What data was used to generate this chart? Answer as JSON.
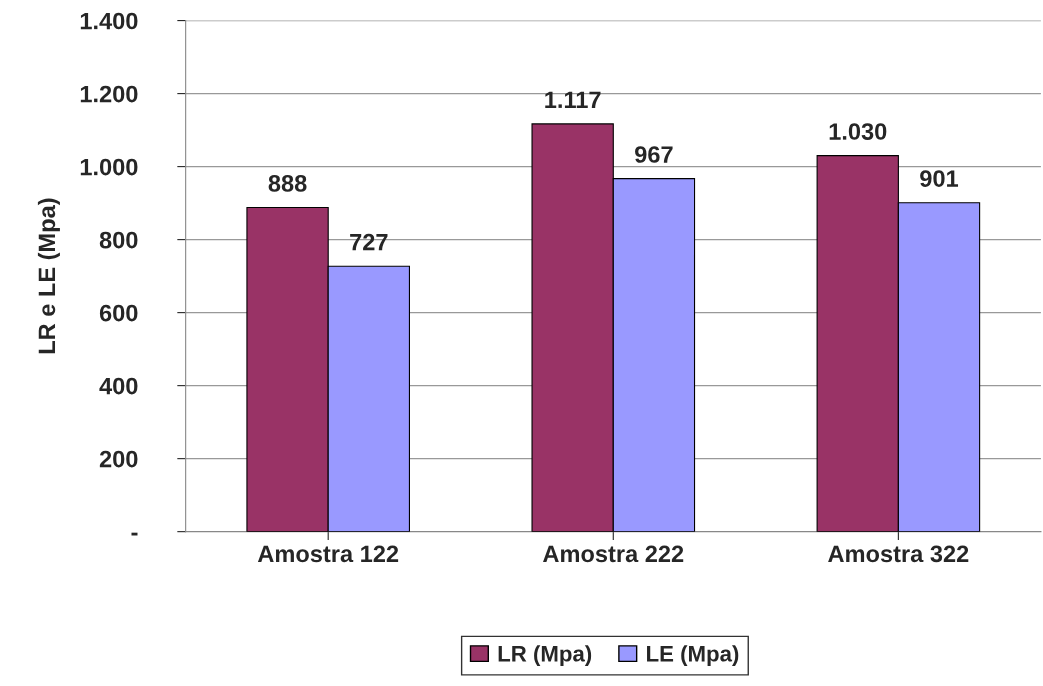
{
  "chart_data": {
    "type": "bar",
    "ylabel": "LR e LE (Mpa)",
    "categories": [
      "Amostra 122",
      "Amostra 222",
      "Amostra 322"
    ],
    "series": [
      {
        "name": "LR (Mpa)",
        "color": "#993366",
        "values": [
          888,
          1117,
          1030
        ],
        "value_labels": [
          "888",
          "1.117",
          "1.030"
        ]
      },
      {
        "name": "LE (Mpa)",
        "color": "#9999ff",
        "values": [
          727,
          967,
          901
        ],
        "value_labels": [
          "727",
          "967",
          "901"
        ]
      }
    ],
    "ylim": [
      0,
      1400
    ],
    "yticks": [
      {
        "value": 0,
        "label": "-"
      },
      200,
      400,
      600,
      800,
      {
        "value": 1000,
        "label": "1.000"
      },
      {
        "value": 1200,
        "label": "1.200"
      },
      {
        "value": 1400,
        "label": "1.400"
      }
    ],
    "grid": "y",
    "legend": "bottom"
  }
}
